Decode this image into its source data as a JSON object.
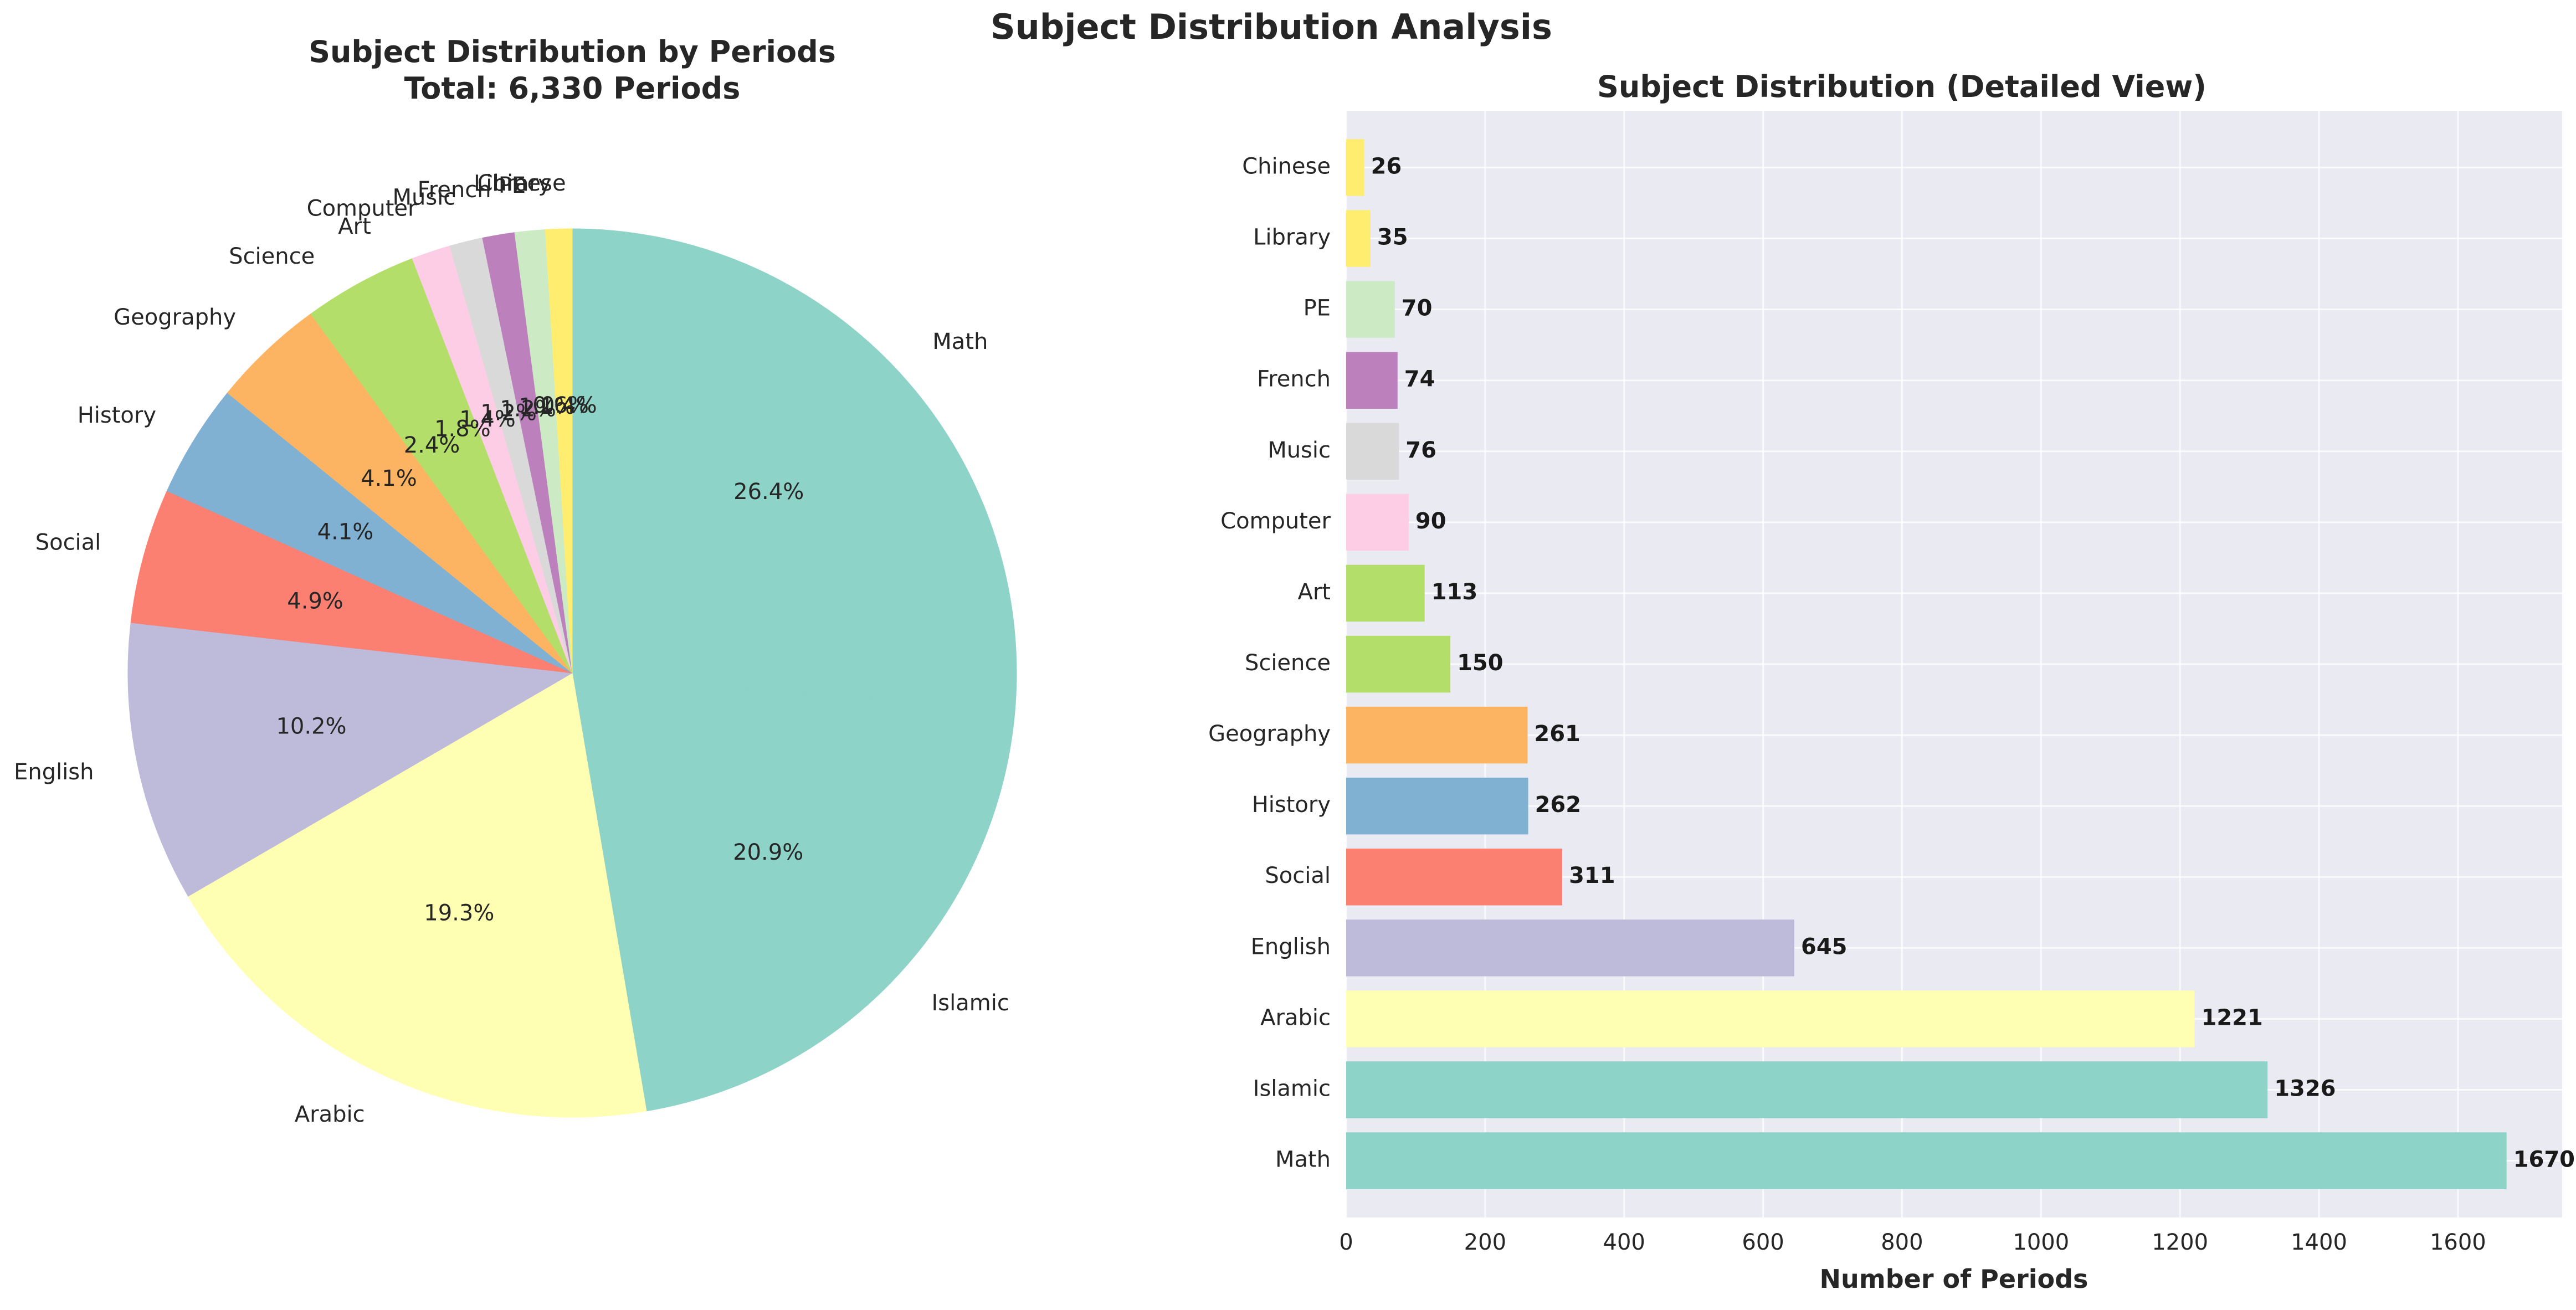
{
  "figure": {
    "title": "Subject Distribution Analysis"
  },
  "chart_data": [
    {
      "type": "pie",
      "title": "Subject Distribution by Periods",
      "subtitle": "Total: 6,330 Periods",
      "start_angle_deg": 90,
      "direction": "clockwise",
      "categories": [
        "Math",
        "Islamic",
        "Arabic",
        "English",
        "Social",
        "History",
        "Geography",
        "Science",
        "Art",
        "Computer",
        "Music",
        "French",
        "PE",
        "Library",
        "Chinese"
      ],
      "values": [
        1670,
        1326,
        1221,
        645,
        311,
        262,
        261,
        150,
        113,
        90,
        76,
        74,
        70,
        35,
        26
      ],
      "percent_labels": [
        "26.4%",
        "20.9%",
        "19.3%",
        "10.2%",
        "4.9%",
        "4.1%",
        "4.1%",
        "2.4%",
        "1.8%",
        "1.4%",
        "1.2%",
        "1.2%",
        "1.1%",
        "0.6%",
        "0.4%"
      ],
      "colors": [
        "#8dd3c7",
        "#8dd3c7",
        "#ffffb3",
        "#bebada",
        "#fb8072",
        "#80b1d3",
        "#fdb462",
        "#b3de69",
        "#b3de69",
        "#fccde5",
        "#d9d9d9",
        "#bc80bd",
        "#ccebc5",
        "#ffed6f",
        "#ffed6f"
      ]
    },
    {
      "type": "bar",
      "orientation": "horizontal",
      "title": "Subject Distribution (Detailed View)",
      "xlabel": "Number of Periods",
      "ylabel": "",
      "xlim": [
        0,
        1750
      ],
      "xticks": [
        0,
        200,
        400,
        600,
        800,
        1000,
        1200,
        1400,
        1600
      ],
      "grid": true,
      "categories": [
        "Math",
        "Islamic",
        "Arabic",
        "English",
        "Social",
        "History",
        "Geography",
        "Science",
        "Art",
        "Computer",
        "Music",
        "French",
        "PE",
        "Library",
        "Chinese"
      ],
      "values": [
        1670,
        1326,
        1221,
        645,
        311,
        262,
        261,
        150,
        113,
        90,
        76,
        74,
        70,
        35,
        26
      ],
      "colors": [
        "#8dd3c7",
        "#8dd3c7",
        "#ffffb3",
        "#bebada",
        "#fb8072",
        "#80b1d3",
        "#fdb462",
        "#b3de69",
        "#b3de69",
        "#fccde5",
        "#d9d9d9",
        "#bc80bd",
        "#ccebc5",
        "#ffed6f",
        "#ffed6f"
      ],
      "background_color": "#eaeaf2"
    }
  ]
}
